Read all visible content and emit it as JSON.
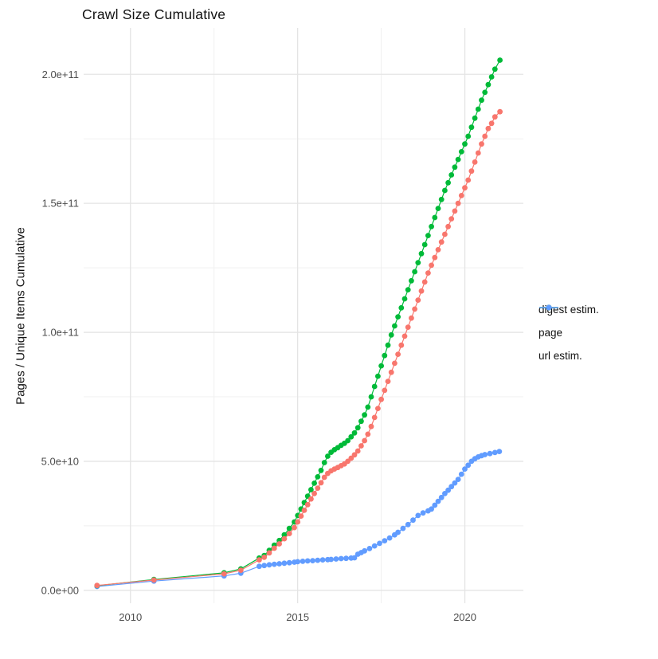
{
  "title": "Crawl Size Cumulative",
  "y_axis_title": "Pages / Unique Items Cumulative",
  "legend": {
    "items": [
      {
        "label": "digest estim.",
        "color": "#F8766D"
      },
      {
        "label": "page",
        "color": "#00BA38"
      },
      {
        "label": "url estim.",
        "color": "#619CFF"
      }
    ]
  },
  "colors": {
    "background": "#ffffff",
    "grid_major": "#E4E4E4",
    "grid_minor": "#EFEFEF",
    "tick_label": "#4D4D4D",
    "text": "#111111",
    "digest": "#F8766D",
    "page": "#00BA38",
    "url": "#619CFF"
  },
  "chart_data": {
    "type": "scatter",
    "title": "Crawl Size Cumulative",
    "xlabel": "",
    "ylabel": "Pages / Unique Items Cumulative",
    "legend_position": "right",
    "grid": true,
    "value_unit": "1e9 items (values below are billions)",
    "xlim": [
      2008.6,
      2021.75
    ],
    "ylim_e9": [
      -5,
      218
    ],
    "x_ticks": {
      "major": [
        2010,
        2015,
        2020
      ],
      "major_labels": [
        "2010",
        "2015",
        "2020"
      ],
      "minor": [
        2012.5,
        2017.5
      ]
    },
    "y_ticks": {
      "major_e9": [
        0,
        50,
        100,
        150,
        200
      ],
      "major_labels": [
        "0.0e+00",
        "5.0e+10",
        "1.0e+11",
        "1.5e+11",
        "2.0e+11"
      ],
      "minor_e9": [
        25,
        75,
        125,
        175
      ]
    },
    "draw_order": [
      2,
      1,
      0
    ],
    "series": [
      {
        "name": "digest estim.",
        "color": "#F8766D",
        "points": [
          [
            2009.0,
            1.9
          ],
          [
            2010.7,
            4.0
          ],
          [
            2012.8,
            6.4
          ],
          [
            2013.3,
            7.8
          ],
          [
            2013.85,
            11.8
          ],
          [
            2014.0,
            12.8
          ],
          [
            2014.15,
            14.5
          ],
          [
            2014.3,
            16.3
          ],
          [
            2014.45,
            18
          ],
          [
            2014.6,
            20
          ],
          [
            2014.75,
            22
          ],
          [
            2014.9,
            24.3
          ],
          [
            2015.0,
            26.5
          ],
          [
            2015.1,
            28.8
          ],
          [
            2015.2,
            31
          ],
          [
            2015.3,
            33.2
          ],
          [
            2015.4,
            35.4
          ],
          [
            2015.5,
            37.5
          ],
          [
            2015.6,
            39.6
          ],
          [
            2015.7,
            41.7
          ],
          [
            2015.8,
            43.8
          ],
          [
            2015.9,
            45.3
          ],
          [
            2016.0,
            46.3
          ],
          [
            2016.1,
            47
          ],
          [
            2016.2,
            47.6
          ],
          [
            2016.3,
            48.3
          ],
          [
            2016.4,
            49
          ],
          [
            2016.5,
            50
          ],
          [
            2016.6,
            51.2
          ],
          [
            2016.7,
            52.5
          ],
          [
            2016.8,
            54
          ],
          [
            2016.9,
            56
          ],
          [
            2017.0,
            58
          ],
          [
            2017.1,
            60.5
          ],
          [
            2017.2,
            63.5
          ],
          [
            2017.3,
            67
          ],
          [
            2017.4,
            70.5
          ],
          [
            2017.5,
            74
          ],
          [
            2017.6,
            77.5
          ],
          [
            2017.7,
            81
          ],
          [
            2017.8,
            84.5
          ],
          [
            2017.9,
            88
          ],
          [
            2018.0,
            91.5
          ],
          [
            2018.1,
            95
          ],
          [
            2018.2,
            98.5
          ],
          [
            2018.3,
            102
          ],
          [
            2018.4,
            105.5
          ],
          [
            2018.5,
            109
          ],
          [
            2018.6,
            112.5
          ],
          [
            2018.7,
            116
          ],
          [
            2018.8,
            119.5
          ],
          [
            2018.9,
            123
          ],
          [
            2019.0,
            126
          ],
          [
            2019.1,
            129
          ],
          [
            2019.2,
            132
          ],
          [
            2019.3,
            135
          ],
          [
            2019.4,
            138
          ],
          [
            2019.5,
            141
          ],
          [
            2019.6,
            144
          ],
          [
            2019.7,
            147
          ],
          [
            2019.8,
            150
          ],
          [
            2019.9,
            153
          ],
          [
            2020.0,
            156
          ],
          [
            2020.1,
            159
          ],
          [
            2020.2,
            162.5
          ],
          [
            2020.3,
            166
          ],
          [
            2020.4,
            169.5
          ],
          [
            2020.5,
            173
          ],
          [
            2020.6,
            176
          ],
          [
            2020.7,
            179
          ],
          [
            2020.8,
            181
          ],
          [
            2020.9,
            183.5
          ],
          [
            2021.05,
            185.5
          ]
        ]
      },
      {
        "name": "page",
        "color": "#00BA38",
        "points": [
          [
            2009.0,
            1.8
          ],
          [
            2010.7,
            4.2
          ],
          [
            2012.8,
            6.8
          ],
          [
            2013.3,
            8.3
          ],
          [
            2013.85,
            12.5
          ],
          [
            2014.0,
            13.5
          ],
          [
            2014.15,
            15.5
          ],
          [
            2014.3,
            17.5
          ],
          [
            2014.45,
            19.3
          ],
          [
            2014.6,
            21.5
          ],
          [
            2014.75,
            24
          ],
          [
            2014.9,
            26.5
          ],
          [
            2015.0,
            29
          ],
          [
            2015.1,
            31.5
          ],
          [
            2015.2,
            34
          ],
          [
            2015.3,
            36.5
          ],
          [
            2015.4,
            39
          ],
          [
            2015.5,
            41.5
          ],
          [
            2015.6,
            44
          ],
          [
            2015.7,
            46.5
          ],
          [
            2015.8,
            49.5
          ],
          [
            2015.9,
            52
          ],
          [
            2016.0,
            53.5
          ],
          [
            2016.1,
            54.5
          ],
          [
            2016.2,
            55.3
          ],
          [
            2016.3,
            56.2
          ],
          [
            2016.4,
            57
          ],
          [
            2016.5,
            58
          ],
          [
            2016.6,
            59.5
          ],
          [
            2016.7,
            61
          ],
          [
            2016.8,
            63
          ],
          [
            2016.9,
            65.5
          ],
          [
            2017.0,
            68
          ],
          [
            2017.1,
            71
          ],
          [
            2017.2,
            75
          ],
          [
            2017.3,
            79
          ],
          [
            2017.4,
            83
          ],
          [
            2017.5,
            87
          ],
          [
            2017.6,
            91
          ],
          [
            2017.7,
            95
          ],
          [
            2017.8,
            99
          ],
          [
            2017.9,
            102.5
          ],
          [
            2018.0,
            106
          ],
          [
            2018.1,
            109.5
          ],
          [
            2018.2,
            113
          ],
          [
            2018.3,
            116.5
          ],
          [
            2018.4,
            120
          ],
          [
            2018.5,
            123.5
          ],
          [
            2018.6,
            127
          ],
          [
            2018.7,
            130.5
          ],
          [
            2018.8,
            134
          ],
          [
            2018.9,
            137.5
          ],
          [
            2019.0,
            141
          ],
          [
            2019.1,
            144.5
          ],
          [
            2019.2,
            148
          ],
          [
            2019.3,
            151.5
          ],
          [
            2019.4,
            155
          ],
          [
            2019.5,
            158
          ],
          [
            2019.6,
            161
          ],
          [
            2019.7,
            164
          ],
          [
            2019.8,
            167
          ],
          [
            2019.9,
            170
          ],
          [
            2020.0,
            173
          ],
          [
            2020.1,
            176
          ],
          [
            2020.2,
            179.5
          ],
          [
            2020.3,
            183
          ],
          [
            2020.4,
            186.5
          ],
          [
            2020.5,
            190
          ],
          [
            2020.6,
            193
          ],
          [
            2020.7,
            196
          ],
          [
            2020.8,
            199
          ],
          [
            2020.9,
            202
          ],
          [
            2021.05,
            205.5
          ]
        ]
      },
      {
        "name": "url estim.",
        "color": "#619CFF",
        "points": [
          [
            2009.0,
            1.5
          ],
          [
            2010.7,
            3.6
          ],
          [
            2012.8,
            5.6
          ],
          [
            2013.3,
            6.6
          ],
          [
            2013.85,
            9.3
          ],
          [
            2014.0,
            9.6
          ],
          [
            2014.15,
            9.9
          ],
          [
            2014.3,
            10.1
          ],
          [
            2014.45,
            10.3
          ],
          [
            2014.6,
            10.5
          ],
          [
            2014.75,
            10.7
          ],
          [
            2014.9,
            10.9
          ],
          [
            2015.0,
            11.1
          ],
          [
            2015.15,
            11.25
          ],
          [
            2015.3,
            11.4
          ],
          [
            2015.45,
            11.5
          ],
          [
            2015.6,
            11.65
          ],
          [
            2015.75,
            11.8
          ],
          [
            2015.9,
            11.9
          ],
          [
            2016.0,
            12
          ],
          [
            2016.15,
            12.15
          ],
          [
            2016.3,
            12.3
          ],
          [
            2016.45,
            12.4
          ],
          [
            2016.6,
            12.5
          ],
          [
            2016.7,
            12.6
          ],
          [
            2016.8,
            14
          ],
          [
            2016.9,
            14.6
          ],
          [
            2017.0,
            15.3
          ],
          [
            2017.15,
            16.2
          ],
          [
            2017.3,
            17.2
          ],
          [
            2017.45,
            18.2
          ],
          [
            2017.6,
            19.2
          ],
          [
            2017.75,
            20.3
          ],
          [
            2017.9,
            21.5
          ],
          [
            2018.0,
            22.5
          ],
          [
            2018.15,
            24
          ],
          [
            2018.3,
            25.5
          ],
          [
            2018.45,
            27.2
          ],
          [
            2018.6,
            29
          ],
          [
            2018.75,
            30
          ],
          [
            2018.9,
            30.8
          ],
          [
            2019.0,
            31.5
          ],
          [
            2019.1,
            33
          ],
          [
            2019.2,
            34.5
          ],
          [
            2019.3,
            36
          ],
          [
            2019.4,
            37.5
          ],
          [
            2019.5,
            38.8
          ],
          [
            2019.6,
            40.2
          ],
          [
            2019.7,
            41.6
          ],
          [
            2019.8,
            43
          ],
          [
            2019.9,
            45
          ],
          [
            2020.0,
            47
          ],
          [
            2020.1,
            48.5
          ],
          [
            2020.2,
            50
          ],
          [
            2020.3,
            51
          ],
          [
            2020.4,
            51.7
          ],
          [
            2020.5,
            52.2
          ],
          [
            2020.6,
            52.6
          ],
          [
            2020.75,
            53
          ],
          [
            2020.9,
            53.4
          ],
          [
            2021.03,
            53.8
          ]
        ]
      }
    ]
  }
}
